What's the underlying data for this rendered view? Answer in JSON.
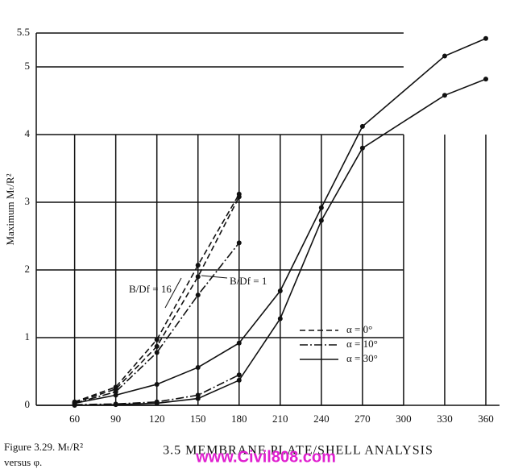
{
  "chart_data": {
    "type": "line",
    "ylabel": "Maximum Mₜ/R²",
    "xlim": [
      32,
      370
    ],
    "ylim": [
      0,
      5.5
    ],
    "xticks": [
      60,
      90,
      120,
      150,
      180,
      210,
      240,
      270,
      300,
      330,
      360
    ],
    "yticks": [
      0,
      1,
      2,
      3,
      4,
      5,
      5.5
    ],
    "grid": true,
    "series": [
      {
        "color": "#111111",
        "dash": "7,4",
        "x": [
          60,
          90,
          120,
          150,
          180
        ],
        "values": [
          0.05,
          0.27,
          0.97,
          2.07,
          3.12
        ]
      },
      {
        "color": "#111111",
        "dash": "7,4",
        "x": [
          60,
          90,
          120,
          150,
          180
        ],
        "values": [
          0.04,
          0.24,
          0.87,
          1.9,
          3.08
        ]
      },
      {
        "color": "#111111",
        "dash": "10,3,2,3",
        "x": [
          60,
          90,
          120,
          150,
          180
        ],
        "values": [
          0.03,
          0.2,
          0.78,
          1.63,
          2.4
        ]
      },
      {
        "color": "#111111",
        "dash": "none",
        "x": [
          60,
          90,
          120,
          150,
          180,
          210,
          240,
          270,
          330,
          360
        ],
        "values": [
          0.03,
          0.15,
          0.31,
          0.56,
          0.92,
          1.69,
          2.92,
          4.12,
          5.16,
          5.42
        ]
      },
      {
        "color": "#111111",
        "dash": "10,3,2,3",
        "x": [
          60,
          90,
          120,
          150,
          180
        ],
        "values": [
          0.01,
          0.02,
          0.05,
          0.15,
          0.45
        ]
      },
      {
        "color": "#111111",
        "dash": "none",
        "x": [
          60,
          90,
          120,
          150,
          180,
          210,
          240,
          270,
          330,
          360
        ],
        "values": [
          0,
          0.01,
          0.03,
          0.1,
          0.37,
          1.28,
          2.73,
          3.8,
          4.58,
          4.82
        ]
      }
    ],
    "legend": [
      {
        "label": "α = 0°",
        "dash": "7,4"
      },
      {
        "label": "α = 10°",
        "dash": "10,3,2,3"
      },
      {
        "label": "α = 30°",
        "dash": "none"
      }
    ],
    "annotations": [
      "B/Df = 16",
      "B/Df = 1"
    ],
    "caption": [
      "Figure 3.29. Mₜ/R²",
      "versus φ."
    ],
    "page_header": "3.5 MEMBRANE PLATE/SHELL ANALYSIS",
    "watermark": "www.Civil808.com"
  }
}
